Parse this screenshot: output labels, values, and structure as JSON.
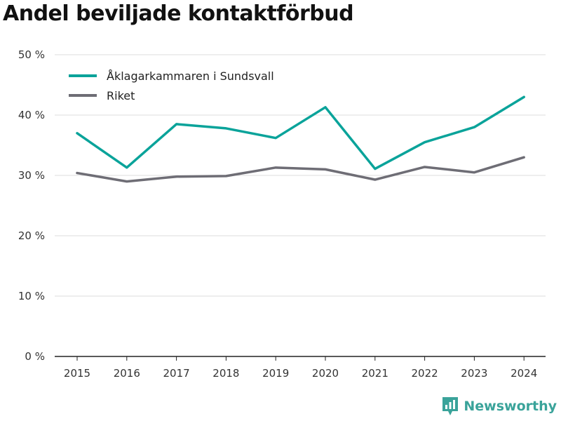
{
  "title": "Andel beviljade kontaktförbud",
  "brand": {
    "name": "Newsworthy",
    "icon": "newsworthy-logo-icon",
    "color": "#3aa39a"
  },
  "chart_data": {
    "type": "line",
    "x": [
      "2015",
      "2016",
      "2017",
      "2018",
      "2019",
      "2020",
      "2021",
      "2022",
      "2023",
      "2024"
    ],
    "series": [
      {
        "name": "Åklagarkammaren i Sundsvall",
        "color": "#0aa39a",
        "values": [
          37.0,
          31.3,
          38.5,
          37.8,
          36.2,
          41.3,
          31.1,
          35.5,
          38.0,
          43.0
        ]
      },
      {
        "name": "Riket",
        "color": "#6e6d75",
        "values": [
          30.4,
          29.0,
          29.8,
          29.9,
          31.3,
          31.0,
          29.3,
          31.4,
          30.5,
          33.0
        ]
      }
    ],
    "ylim": [
      0,
      50
    ],
    "y_ticks": [
      0,
      10,
      20,
      30,
      40,
      50
    ],
    "y_tick_labels": [
      "0 %",
      "10 %",
      "20 %",
      "30 %",
      "40 %",
      "50 %"
    ],
    "grid": true,
    "legend_position": "top-left",
    "xlabel": "",
    "ylabel": ""
  }
}
